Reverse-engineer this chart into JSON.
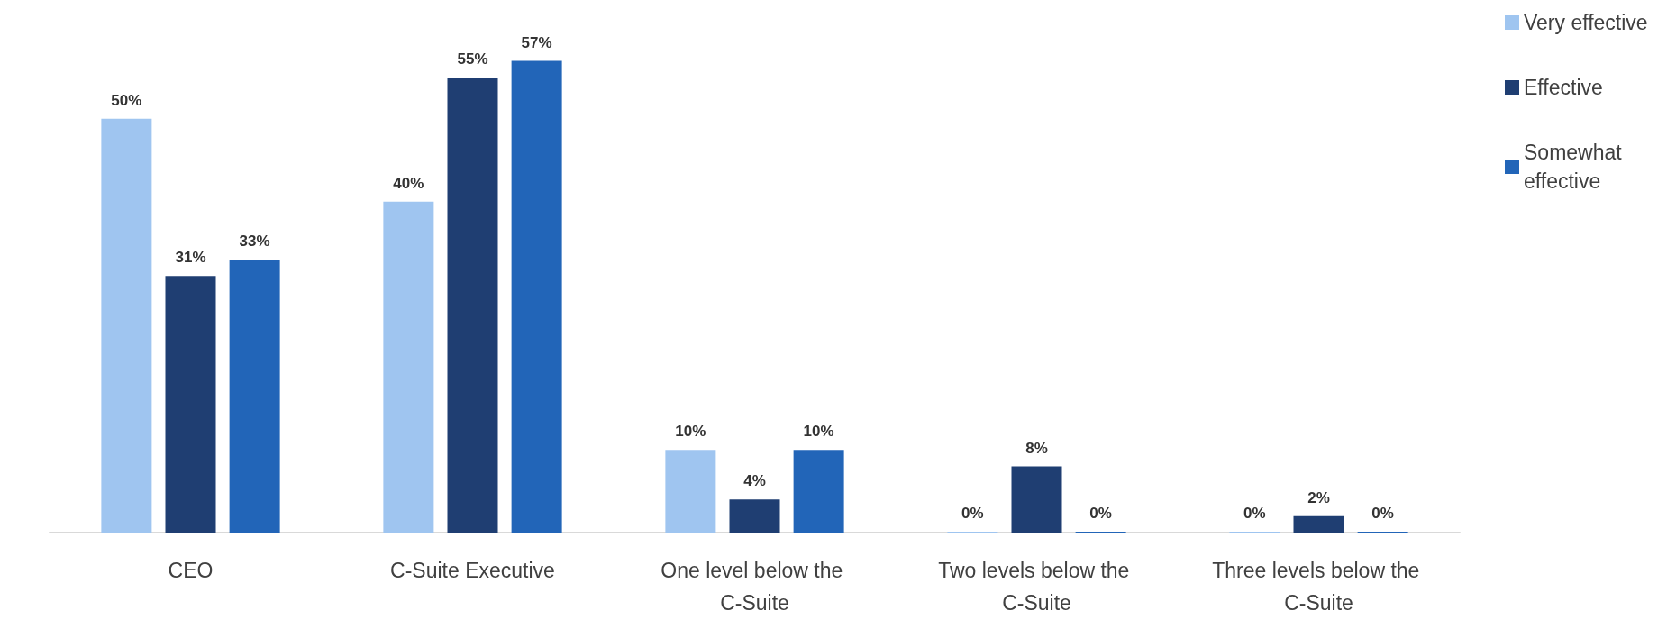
{
  "chart_data": {
    "type": "bar",
    "categories": [
      "CEO",
      "C-Suite Executive",
      "One level below the C-Suite",
      "Two levels below the C-Suite",
      "Three levels below the C-Suite"
    ],
    "series": [
      {
        "name": "Very effective",
        "color": "#9fc5f0",
        "values": [
          50,
          40,
          10,
          0,
          0
        ],
        "value_labels": [
          "50%",
          "40%",
          "10%",
          "0%",
          "0%"
        ]
      },
      {
        "name": "Effective",
        "color": "#1f3e72",
        "values": [
          31,
          55,
          4,
          8,
          2
        ],
        "value_labels": [
          "31%",
          "55%",
          "4%",
          "8%",
          "2%"
        ]
      },
      {
        "name": "Somewhat effective",
        "color": "#2265b8",
        "values": [
          33,
          57,
          10,
          0,
          0
        ],
        "value_labels": [
          "33%",
          "57%",
          "10%",
          "0%",
          "0%"
        ]
      }
    ],
    "grid": false,
    "legend": "top right"
  }
}
